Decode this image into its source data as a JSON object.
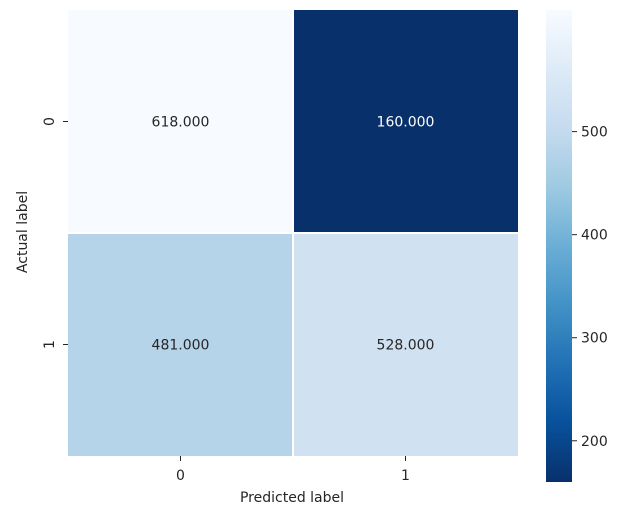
{
  "chart_data": {
    "type": "heatmap",
    "x_categories": [
      "0",
      "1"
    ],
    "y_categories": [
      "0",
      "1"
    ],
    "values": [
      [
        618,
        160
      ],
      [
        481,
        528
      ]
    ],
    "cell_labels": [
      [
        "618.000",
        "160.000"
      ],
      [
        "481.000",
        "528.000"
      ]
    ],
    "xlabel": "Predicted label",
    "ylabel": "Actual label",
    "colormap": "Blues",
    "colorbar": {
      "range": [
        160,
        618
      ],
      "ticks": [
        200,
        300,
        400,
        500
      ],
      "tick_labels": [
        "200",
        "300",
        "400",
        "500"
      ]
    },
    "text_colors": {
      "light_cell": "#262626",
      "dark_cell": "#ffffff"
    },
    "grid_line_color": "#ffffff",
    "label_color": "#262626"
  }
}
